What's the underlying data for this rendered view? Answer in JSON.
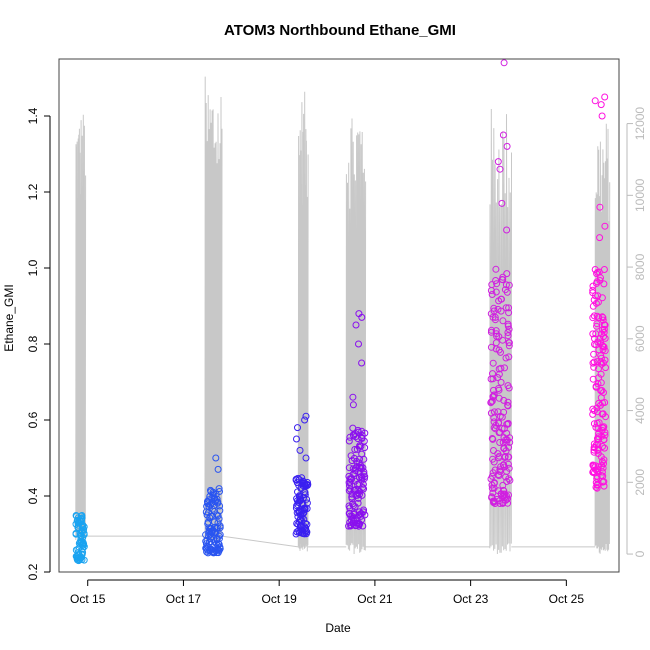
{
  "chart_data": {
    "type": "scatter",
    "title": "ATOM3 Northbound Ethane_GMI",
    "xlabel": "Date",
    "ylabel": "Ethane_GMI",
    "x_ticks": [
      "Oct 15",
      "Oct 17",
      "Oct 19",
      "Oct 21",
      "Oct 23",
      "Oct 25"
    ],
    "x_tick_days": [
      15,
      17,
      19,
      21,
      23,
      25
    ],
    "xlim": [
      14.4,
      26.1
    ],
    "ylim": [
      0.2,
      1.55
    ],
    "y_ticks": [
      "0.2",
      "0.4",
      "0.6",
      "0.8",
      "1.0",
      "1.2",
      "1.4"
    ],
    "y_tick_values": [
      0.2,
      0.4,
      0.6,
      0.8,
      1.0,
      1.2,
      1.4
    ],
    "y2lim": [
      -500,
      13800
    ],
    "y2_ticks": [
      "0",
      "2000",
      "4000",
      "6000",
      "8000",
      "10000",
      "12000"
    ],
    "y2_tick_values": [
      0,
      2000,
      4000,
      6000,
      8000,
      10000,
      12000
    ],
    "y2_color": "#bbbbbb",
    "secondary_series_color": "#c8c8c8",
    "grid": false,
    "legend": "none",
    "point_clusters": [
      {
        "t0": 14.75,
        "t1": 14.93,
        "ymin": 0.23,
        "ymax": 0.35,
        "n": 70,
        "color": "#1aa3f0",
        "peaks": [
          0.34,
          0.33
        ]
      },
      {
        "t0": 17.46,
        "t1": 17.78,
        "ymin": 0.25,
        "ymax": 0.42,
        "n": 110,
        "color": "#2a55f0",
        "peaks": [
          0.5,
          0.47,
          0.41
        ]
      },
      {
        "t0": 19.35,
        "t1": 19.6,
        "ymin": 0.3,
        "ymax": 0.45,
        "n": 90,
        "color": "#3a20f0",
        "peaks": [
          0.61,
          0.6,
          0.58,
          0.55,
          0.52,
          0.5
        ]
      },
      {
        "t0": 20.45,
        "t1": 20.8,
        "ymin": 0.32,
        "ymax": 0.58,
        "n": 120,
        "color": "#8a10ee",
        "peaks": [
          0.88,
          0.87,
          0.85,
          0.8,
          0.75,
          0.66,
          0.64
        ]
      },
      {
        "t0": 23.42,
        "t1": 23.82,
        "ymin": 0.38,
        "ymax": 1.0,
        "n": 180,
        "color": "#d020e0",
        "peaks": [
          1.54,
          1.35,
          1.32,
          1.28,
          1.26,
          1.17,
          1.1
        ]
      },
      {
        "t0": 25.55,
        "t1": 25.82,
        "ymin": 0.42,
        "ymax": 1.0,
        "n": 150,
        "color": "#ff10e0",
        "peaks": [
          1.45,
          1.44,
          1.43,
          1.4,
          1.16,
          1.11,
          1.08
        ]
      }
    ],
    "altitude_clusters": [
      {
        "t0": 14.75,
        "t1": 14.95,
        "peak": 12500,
        "low": 300
      },
      {
        "t0": 17.45,
        "t1": 17.8,
        "peak": 13400,
        "low": 300
      },
      {
        "t0": 19.4,
        "t1": 19.6,
        "peak": 12900,
        "low": 0
      },
      {
        "t0": 20.4,
        "t1": 20.8,
        "peak": 12800,
        "low": 0
      },
      {
        "t0": 23.4,
        "t1": 23.85,
        "peak": 12500,
        "low": 0
      },
      {
        "t0": 25.6,
        "t1": 25.9,
        "peak": 12200,
        "low": 0
      }
    ]
  }
}
